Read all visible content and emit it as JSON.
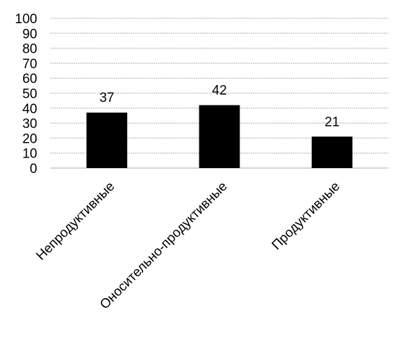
{
  "chart_data": {
    "type": "bar",
    "categories": [
      "Непродуктивные",
      "Оноcительно-продуктивные",
      "Продуктивные"
    ],
    "values": [
      37,
      42,
      21
    ],
    "data_labels": [
      "37",
      "42",
      "21"
    ],
    "ylim": [
      0,
      100
    ],
    "yticks": [
      0,
      10,
      20,
      30,
      40,
      50,
      60,
      70,
      80,
      90,
      100
    ],
    "grid": true,
    "legend": "none",
    "bar_color": "#000000",
    "grid_color": "#c8c8c8"
  }
}
